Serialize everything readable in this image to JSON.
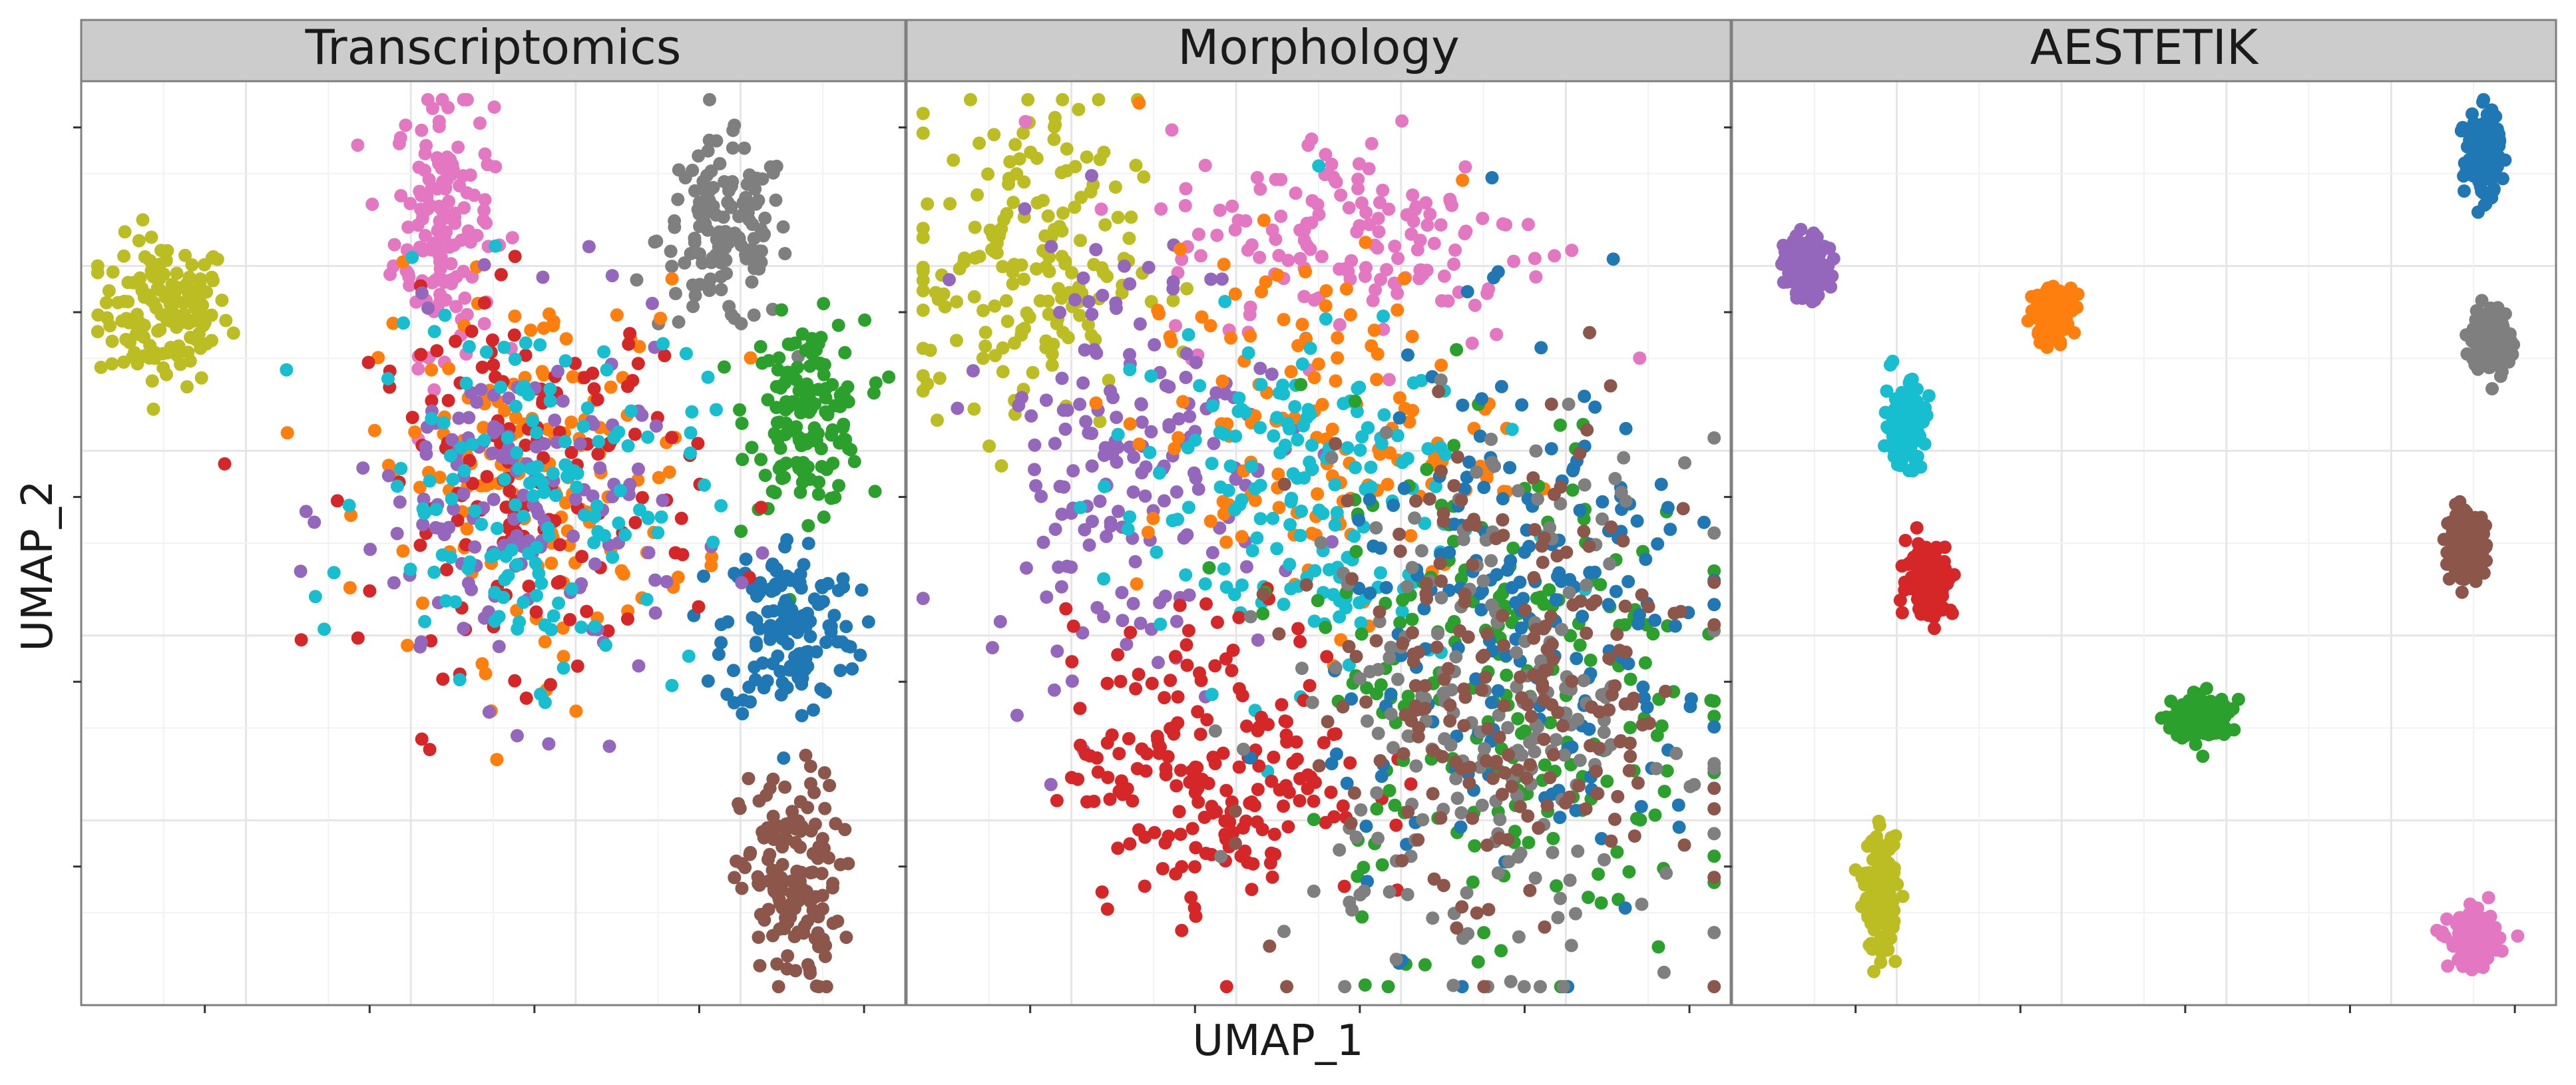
{
  "figure": {
    "xlabel": "UMAP_1",
    "ylabel": "UMAP_2",
    "legend": "none",
    "grid": true
  },
  "colors": {
    "blue": "#1f77b4",
    "orange": "#ff7f0e",
    "green": "#2ca02c",
    "red": "#d62728",
    "purple": "#9467bd",
    "brown": "#8c564b",
    "pink": "#e377c2",
    "gray": "#7f7f7f",
    "olive": "#bcbd22",
    "cyan": "#17becf",
    "strip_bg": "#cccccc",
    "panel_border": "#7f7f7f",
    "grid_major": "#e5e5e5",
    "grid_minor": "#f2f2f2"
  },
  "chart_data": [
    {
      "type": "scatter",
      "title": "Transcriptomics",
      "xlim": [
        0,
        100
      ],
      "ylim": [
        0,
        100
      ],
      "clusters": [
        {
          "color": "olive",
          "cx": 10,
          "cy": 75,
          "sx": 4.0,
          "sy": 4.0,
          "n": 150
        },
        {
          "color": "pink",
          "cx": 44,
          "cy": 85,
          "sx": 3.0,
          "sy": 7.0,
          "n": 150
        },
        {
          "color": "gray",
          "cx": 78,
          "cy": 83,
          "sx": 4.0,
          "sy": 5.0,
          "n": 140
        },
        {
          "color": "green",
          "cx": 88,
          "cy": 64,
          "sx": 3.5,
          "sy": 5.0,
          "n": 150
        },
        {
          "color": "blue",
          "cx": 86,
          "cy": 41,
          "sx": 4.0,
          "sy": 5.0,
          "n": 150
        },
        {
          "color": "brown",
          "cx": 86,
          "cy": 13,
          "sx": 3.0,
          "sy": 6.0,
          "n": 150
        },
        {
          "color": "orange",
          "cx": 55,
          "cy": 58,
          "sx": 10.0,
          "sy": 10.0,
          "n": 150
        },
        {
          "color": "red",
          "cx": 55,
          "cy": 57,
          "sx": 10.0,
          "sy": 10.0,
          "n": 150
        },
        {
          "color": "purple",
          "cx": 53,
          "cy": 53,
          "sx": 10.0,
          "sy": 10.0,
          "n": 150
        },
        {
          "color": "cyan",
          "cx": 55,
          "cy": 56,
          "sx": 10.0,
          "sy": 10.0,
          "n": 150
        }
      ]
    },
    {
      "type": "scatter",
      "title": "Morphology",
      "xlim": [
        0,
        100
      ],
      "ylim": [
        0,
        100
      ],
      "clusters": [
        {
          "color": "olive",
          "cx": 14,
          "cy": 80,
          "sx": 7.0,
          "sy": 9.0,
          "n": 180
        },
        {
          "color": "pink",
          "cx": 55,
          "cy": 83,
          "sx": 12.0,
          "sy": 6.0,
          "n": 150
        },
        {
          "color": "purple",
          "cx": 27,
          "cy": 60,
          "sx": 9.0,
          "sy": 12.0,
          "n": 180
        },
        {
          "color": "orange",
          "cx": 50,
          "cy": 62,
          "sx": 11.0,
          "sy": 10.0,
          "n": 140
        },
        {
          "color": "cyan",
          "cx": 46,
          "cy": 55,
          "sx": 11.0,
          "sy": 10.0,
          "n": 170
        },
        {
          "color": "red",
          "cx": 38,
          "cy": 26,
          "sx": 9.0,
          "sy": 8.0,
          "n": 200
        },
        {
          "color": "green",
          "cx": 72,
          "cy": 34,
          "sx": 12.0,
          "sy": 15.0,
          "n": 220
        },
        {
          "color": "blue",
          "cx": 76,
          "cy": 40,
          "sx": 12.0,
          "sy": 15.0,
          "n": 200
        },
        {
          "color": "gray",
          "cx": 71,
          "cy": 32,
          "sx": 12.0,
          "sy": 14.0,
          "n": 220
        },
        {
          "color": "brown",
          "cx": 73,
          "cy": 34,
          "sx": 12.0,
          "sy": 14.0,
          "n": 220
        }
      ]
    },
    {
      "type": "scatter",
      "title": "AESTETIK",
      "xlim": [
        0,
        100
      ],
      "ylim": [
        0,
        100
      ],
      "clusters": [
        {
          "color": "blue",
          "cx": 91,
          "cy": 92,
          "sx": 1.1,
          "sy": 2.2,
          "n": 150
        },
        {
          "color": "purple",
          "cx": 9,
          "cy": 80,
          "sx": 1.3,
          "sy": 1.6,
          "n": 150
        },
        {
          "color": "orange",
          "cx": 39,
          "cy": 75,
          "sx": 1.2,
          "sy": 1.4,
          "n": 150
        },
        {
          "color": "gray",
          "cx": 92,
          "cy": 72,
          "sx": 1.2,
          "sy": 1.8,
          "n": 150
        },
        {
          "color": "cyan",
          "cx": 21,
          "cy": 63,
          "sx": 1.2,
          "sy": 2.2,
          "n": 150
        },
        {
          "color": "brown",
          "cx": 89,
          "cy": 50,
          "sx": 1.2,
          "sy": 1.6,
          "n": 150
        },
        {
          "color": "red",
          "cx": 24,
          "cy": 46,
          "sx": 1.4,
          "sy": 2.0,
          "n": 150
        },
        {
          "color": "green",
          "cx": 57,
          "cy": 31,
          "sx": 1.8,
          "sy": 1.2,
          "n": 150
        },
        {
          "color": "olive",
          "cx": 18,
          "cy": 12,
          "sx": 1.0,
          "sy": 3.0,
          "n": 150
        },
        {
          "color": "pink",
          "cx": 90,
          "cy": 7,
          "sx": 1.5,
          "sy": 1.4,
          "n": 150
        }
      ]
    }
  ]
}
